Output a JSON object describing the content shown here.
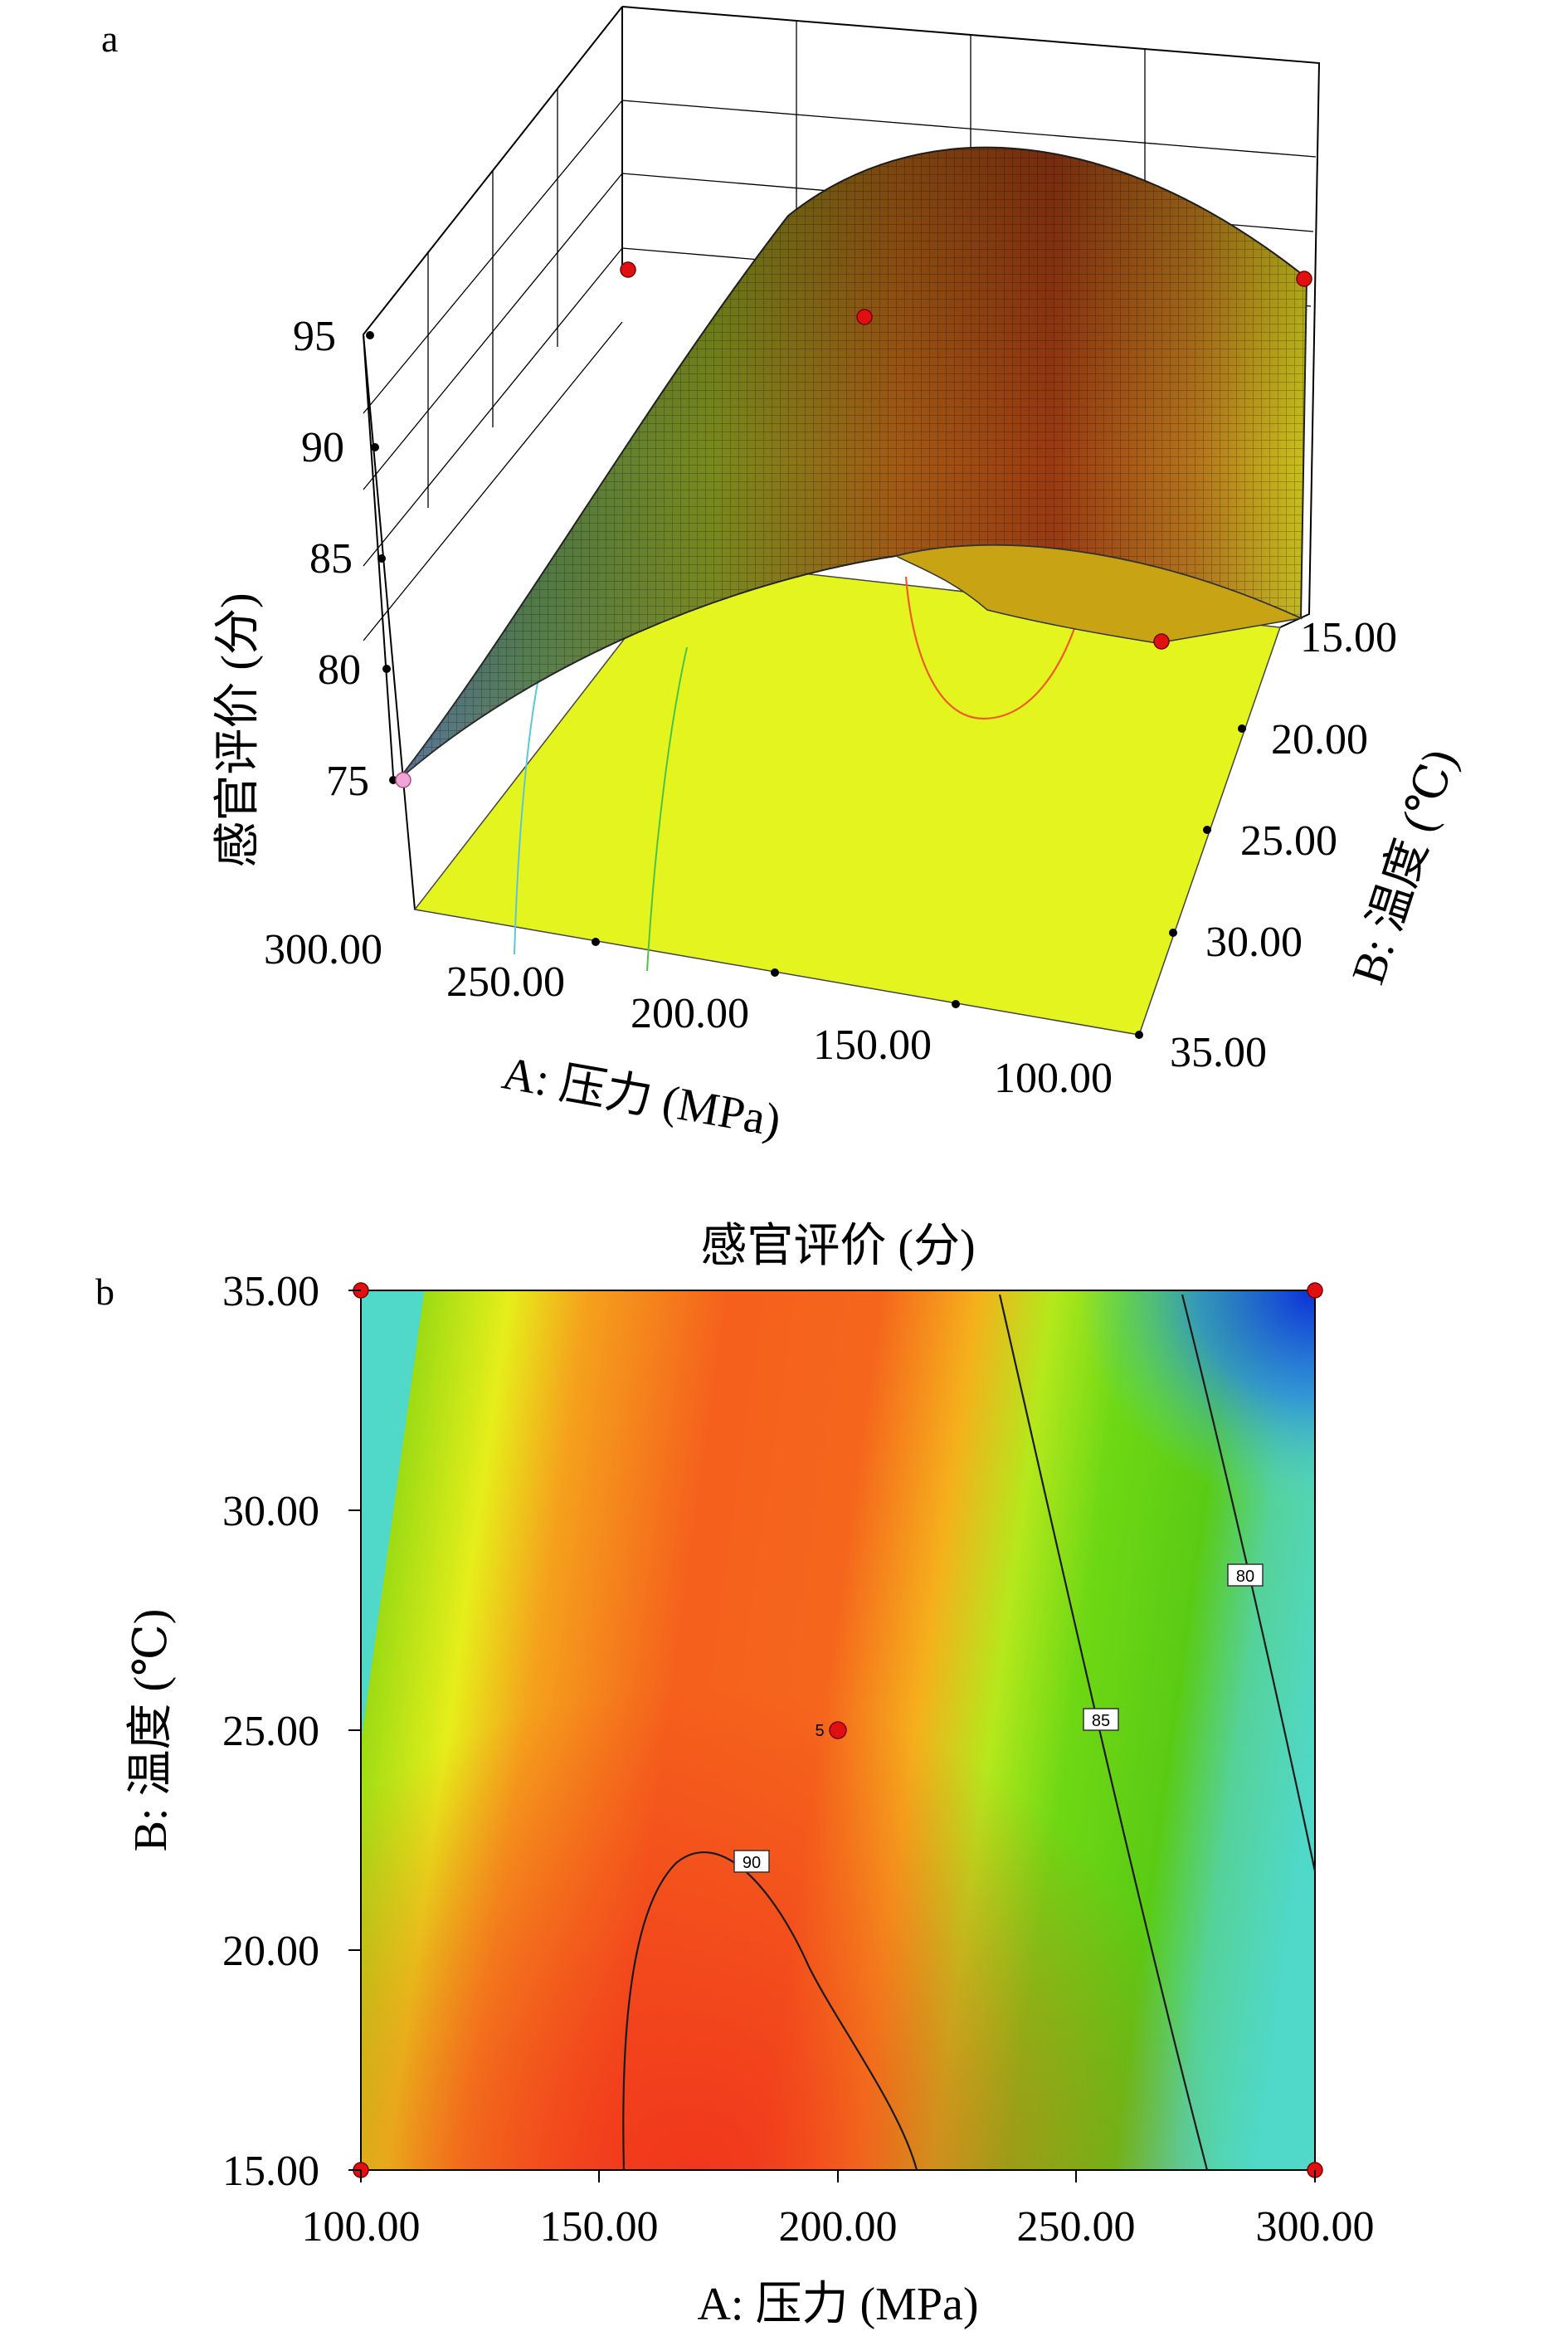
{
  "chart_data": [
    {
      "panel_label": "a",
      "type": "surface3d",
      "zlabel": "感官评价 (分)",
      "xlabel": "A: 压力 (MPa)",
      "ylabel": "B: 温度 (℃)",
      "x_ticks": [
        "300.00",
        "250.00",
        "200.00",
        "150.00",
        "100.00"
      ],
      "y_ticks": [
        "15.00",
        "20.00",
        "25.00",
        "30.00",
        "35.00"
      ],
      "z_ticks": [
        "95",
        "90",
        "85",
        "80",
        "75"
      ],
      "xlim": [
        100,
        300
      ],
      "ylim": [
        15,
        35
      ],
      "zlim": [
        75,
        95
      ],
      "design_points": [
        {
          "pressure": 100,
          "temperature": 15,
          "score": 90.5
        },
        {
          "pressure": 100,
          "temperature": 35,
          "score": 86
        },
        {
          "pressure": 200,
          "temperature": 25,
          "score": 89.5
        },
        {
          "pressure": 300,
          "temperature": 15,
          "score": 79
        },
        {
          "pressure": 300,
          "temperature": 35,
          "score": 75
        }
      ]
    },
    {
      "panel_label": "b",
      "type": "contour",
      "title": "感官评价 (分)",
      "xlabel": "A: 压力 (MPa)",
      "ylabel": "B: 温度 (℃)",
      "x_ticks": [
        "100.00",
        "150.00",
        "200.00",
        "250.00",
        "300.00"
      ],
      "y_ticks": [
        "35.00",
        "30.00",
        "25.00",
        "20.00",
        "15.00"
      ],
      "xlim": [
        100,
        300
      ],
      "ylim": [
        15,
        35
      ],
      "contour_labels": [
        "80",
        "85",
        "90"
      ],
      "center_point_label": "5",
      "design_points": [
        {
          "pressure": 100,
          "temperature": 35
        },
        {
          "pressure": 300,
          "temperature": 35
        },
        {
          "pressure": 200,
          "temperature": 25
        },
        {
          "pressure": 100,
          "temperature": 15
        },
        {
          "pressure": 300,
          "temperature": 15
        }
      ]
    }
  ]
}
